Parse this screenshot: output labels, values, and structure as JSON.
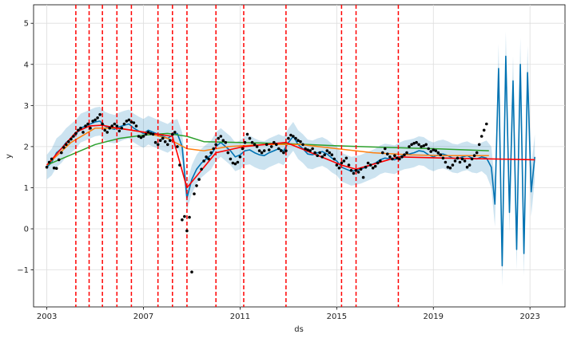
{
  "chart_data": {
    "type": "line",
    "title": "",
    "xlabel": "ds",
    "ylabel": "y",
    "xlim": [
      2002.45,
      2024.45
    ],
    "ylim": [
      -1.9,
      5.45
    ],
    "x_ticks": [
      2003,
      2007,
      2011,
      2015,
      2019,
      2023
    ],
    "x_tick_labels": [
      "2003",
      "2007",
      "2011",
      "2015",
      "2019",
      "2023"
    ],
    "y_ticks": [
      -1,
      0,
      1,
      2,
      3,
      4,
      5
    ],
    "y_tick_labels": [
      "−1",
      "0",
      "1",
      "2",
      "3",
      "4",
      "5"
    ],
    "grid": true,
    "legend": "none",
    "changepoints": [
      2004.2,
      2004.75,
      2005.3,
      2005.9,
      2006.5,
      2007.6,
      2008.2,
      2008.8,
      2010.0,
      2011.15,
      2012.9,
      2015.2,
      2015.8,
      2017.55
    ],
    "colors": {
      "observed": "#000000",
      "forecast": "#0072B2",
      "interval": "#0072B2",
      "changepoint": "#FF0000",
      "trend_red": "#FF0000",
      "trend_green": "#2CA02C",
      "trend_orange": "#FF7F0E"
    },
    "observed": {
      "x": [
        2003.0,
        2003.1,
        2003.2,
        2003.3,
        2003.4,
        2003.5,
        2003.6,
        2003.7,
        2003.8,
        2003.9,
        2004.0,
        2004.1,
        2004.2,
        2004.3,
        2004.4,
        2004.5,
        2004.6,
        2004.7,
        2004.8,
        2004.9,
        2005.0,
        2005.1,
        2005.2,
        2005.3,
        2005.4,
        2005.5,
        2005.6,
        2005.7,
        2005.8,
        2005.9,
        2006.0,
        2006.1,
        2006.2,
        2006.3,
        2006.4,
        2006.5,
        2006.6,
        2006.7,
        2006.8,
        2006.9,
        2007.0,
        2007.1,
        2007.2,
        2007.3,
        2007.4,
        2007.5,
        2007.6,
        2007.7,
        2007.8,
        2007.9,
        2008.0,
        2008.1,
        2008.2,
        2008.3,
        2008.4,
        2008.5,
        2008.6,
        2008.7,
        2008.8,
        2008.9,
        2009.0,
        2009.1,
        2009.2,
        2009.3,
        2009.4,
        2009.5,
        2009.6,
        2009.7,
        2009.8,
        2009.9,
        2010.0,
        2010.1,
        2010.2,
        2010.3,
        2010.4,
        2010.5,
        2010.6,
        2010.7,
        2010.8,
        2010.9,
        2011.0,
        2011.1,
        2011.2,
        2011.3,
        2011.4,
        2011.5,
        2011.6,
        2011.7,
        2011.8,
        2011.9,
        2012.0,
        2012.1,
        2012.2,
        2012.3,
        2012.4,
        2012.5,
        2012.6,
        2012.7,
        2012.8,
        2012.9,
        2013.0,
        2013.1,
        2013.2,
        2013.3,
        2013.4,
        2013.5,
        2013.6,
        2013.7,
        2013.8,
        2013.9,
        2014.0,
        2014.1,
        2014.2,
        2014.3,
        2014.4,
        2014.5,
        2014.6,
        2014.7,
        2014.8,
        2014.9,
        2015.0,
        2015.1,
        2015.2,
        2015.3,
        2015.4,
        2015.5,
        2015.6,
        2015.7,
        2015.8,
        2015.9,
        2016.0,
        2016.1,
        2016.2,
        2016.3,
        2016.4,
        2016.5,
        2016.6,
        2016.7,
        2016.8,
        2016.9,
        2017.0,
        2017.1,
        2017.2,
        2017.3,
        2017.4,
        2017.5,
        2017.6,
        2017.7,
        2017.8,
        2017.9,
        2018.0,
        2018.1,
        2018.2,
        2018.3,
        2018.4,
        2018.5,
        2018.6,
        2018.7,
        2018.8,
        2018.9,
        2019.0,
        2019.1,
        2019.2,
        2019.3,
        2019.4,
        2019.5,
        2019.6,
        2019.7,
        2019.8,
        2019.9,
        2020.0,
        2020.1,
        2020.2,
        2020.3,
        2020.4,
        2020.5,
        2020.6,
        2020.7,
        2020.8,
        2020.9,
        2021.0,
        2021.1,
        2021.2
      ],
      "y": [
        1.5,
        1.62,
        1.7,
        1.48,
        1.47,
        1.68,
        1.85,
        1.98,
        2.05,
        2.12,
        2.18,
        2.25,
        2.32,
        2.4,
        2.45,
        2.35,
        2.5,
        2.55,
        2.45,
        2.62,
        2.65,
        2.7,
        2.78,
        2.55,
        2.4,
        2.35,
        2.45,
        2.5,
        2.55,
        2.5,
        2.38,
        2.45,
        2.55,
        2.62,
        2.65,
        2.6,
        2.58,
        2.5,
        2.25,
        2.22,
        2.25,
        2.3,
        2.35,
        2.32,
        2.3,
        2.1,
        2.05,
        2.15,
        2.2,
        2.12,
        2.05,
        2.15,
        2.3,
        2.35,
        2.0,
        1.55,
        0.22,
        0.3,
        -0.05,
        0.28,
        -1.05,
        0.85,
        1.05,
        1.2,
        1.45,
        1.65,
        1.75,
        1.7,
        1.85,
        1.95,
        2.05,
        2.2,
        2.25,
        2.15,
        2.1,
        1.85,
        1.7,
        1.6,
        1.58,
        1.62,
        1.75,
        1.95,
        2.1,
        2.3,
        2.2,
        2.1,
        2.05,
        2.0,
        1.9,
        1.85,
        1.9,
        2.05,
        1.92,
        2.0,
        2.1,
        2.05,
        1.95,
        1.9,
        1.85,
        1.9,
        2.2,
        2.28,
        2.25,
        2.2,
        2.15,
        2.12,
        2.05,
        1.95,
        1.92,
        1.9,
        1.95,
        1.85,
        1.78,
        1.85,
        1.75,
        1.8,
        1.9,
        1.85,
        1.8,
        1.7,
        1.55,
        1.48,
        1.6,
        1.65,
        1.72,
        1.55,
        1.42,
        1.35,
        1.42,
        1.38,
        1.45,
        1.25,
        1.5,
        1.6,
        1.55,
        1.48,
        1.52,
        1.6,
        1.65,
        1.85,
        1.95,
        1.82,
        1.75,
        1.7,
        1.78,
        1.72,
        1.7,
        1.75,
        1.8,
        1.85,
        2.0,
        2.05,
        2.08,
        2.1,
        2.05,
        2.0,
        2.02,
        2.05,
        1.95,
        1.88,
        1.92,
        1.9,
        1.85,
        1.8,
        1.72,
        1.62,
        1.5,
        1.48,
        1.55,
        1.65,
        1.72,
        1.62,
        1.7,
        1.65,
        1.5,
        1.55,
        1.7,
        1.78,
        1.85,
        2.05,
        2.25,
        2.4,
        2.55
      ]
    },
    "forecast": {
      "x": [
        2003.0,
        2003.2,
        2003.4,
        2003.6,
        2003.8,
        2004.0,
        2004.2,
        2004.4,
        2004.6,
        2004.8,
        2005.0,
        2005.2,
        2005.4,
        2005.6,
        2005.8,
        2006.0,
        2006.2,
        2006.4,
        2006.6,
        2006.8,
        2007.0,
        2007.2,
        2007.4,
        2007.6,
        2007.8,
        2008.0,
        2008.2,
        2008.4,
        2008.6,
        2008.8,
        2009.0,
        2009.2,
        2009.4,
        2009.6,
        2009.8,
        2010.0,
        2010.2,
        2010.4,
        2010.6,
        2010.8,
        2011.0,
        2011.2,
        2011.4,
        2011.6,
        2011.8,
        2012.0,
        2012.2,
        2012.4,
        2012.6,
        2012.8,
        2013.0,
        2013.2,
        2013.4,
        2013.6,
        2013.8,
        2014.0,
        2014.2,
        2014.4,
        2014.6,
        2014.8,
        2015.0,
        2015.2,
        2015.4,
        2015.6,
        2015.8,
        2016.0,
        2016.2,
        2016.4,
        2016.6,
        2016.8,
        2017.0,
        2017.2,
        2017.4,
        2017.6,
        2017.8,
        2018.0,
        2018.2,
        2018.4,
        2018.6,
        2018.8,
        2019.0,
        2019.2,
        2019.4,
        2019.6,
        2019.8,
        2020.0,
        2020.2,
        2020.4,
        2020.6,
        2020.8,
        2021.0,
        2021.2,
        2021.4,
        2021.55,
        2021.7,
        2021.85,
        2022.0,
        2022.15,
        2022.3,
        2022.45,
        2022.6,
        2022.75,
        2022.9,
        2023.05,
        2023.2
      ],
      "y": [
        1.5,
        1.62,
        1.85,
        1.95,
        2.1,
        2.2,
        2.3,
        2.45,
        2.5,
        2.55,
        2.6,
        2.62,
        2.5,
        2.45,
        2.42,
        2.48,
        2.52,
        2.55,
        2.45,
        2.38,
        2.32,
        2.4,
        2.35,
        2.3,
        2.25,
        2.2,
        2.28,
        2.32,
        2.0,
        0.75,
        1.2,
        1.45,
        1.6,
        1.7,
        1.8,
        2.0,
        2.1,
        2.0,
        1.9,
        1.75,
        1.8,
        1.9,
        1.92,
        1.85,
        1.8,
        1.78,
        1.85,
        1.9,
        1.95,
        1.9,
        2.1,
        2.25,
        2.05,
        1.95,
        1.82,
        1.8,
        1.85,
        1.88,
        1.82,
        1.72,
        1.65,
        1.5,
        1.45,
        1.4,
        1.42,
        1.45,
        1.5,
        1.55,
        1.6,
        1.68,
        1.72,
        1.7,
        1.68,
        1.75,
        1.8,
        1.82,
        1.85,
        1.9,
        1.88,
        1.8,
        1.75,
        1.8,
        1.82,
        1.78,
        1.72,
        1.7,
        1.75,
        1.78,
        1.72,
        1.7,
        1.75,
        1.72,
        1.5,
        0.6,
        3.9,
        -0.9,
        4.2,
        0.4,
        3.6,
        -0.5,
        4.0,
        -0.6,
        3.8,
        0.9,
        1.75
      ],
      "lower": [
        1.2,
        1.3,
        1.5,
        1.6,
        1.75,
        1.85,
        1.95,
        2.1,
        2.15,
        2.2,
        2.25,
        2.27,
        2.15,
        2.1,
        2.08,
        2.12,
        2.17,
        2.2,
        2.1,
        2.03,
        1.97,
        2.05,
        2.0,
        1.95,
        1.9,
        1.85,
        1.93,
        1.97,
        1.65,
        0.45,
        0.85,
        1.1,
        1.25,
        1.35,
        1.45,
        1.65,
        1.75,
        1.65,
        1.55,
        1.4,
        1.45,
        1.55,
        1.57,
        1.5,
        1.45,
        1.43,
        1.5,
        1.55,
        1.6,
        1.55,
        1.75,
        1.9,
        1.7,
        1.6,
        1.47,
        1.45,
        1.5,
        1.53,
        1.47,
        1.37,
        1.3,
        1.15,
        1.1,
        1.05,
        1.07,
        1.1,
        1.15,
        1.2,
        1.25,
        1.33,
        1.37,
        1.35,
        1.33,
        1.4,
        1.45,
        1.47,
        1.5,
        1.55,
        1.53,
        1.45,
        1.4,
        1.45,
        1.47,
        1.43,
        1.37,
        1.35,
        1.4,
        1.43,
        1.37,
        1.35,
        1.4,
        1.3,
        1.0,
        0.05,
        3.3,
        -1.4,
        3.6,
        -0.1,
        3.0,
        -1.0,
        3.35,
        -1.15,
        3.1,
        0.3,
        1.2
      ],
      "upper": [
        1.8,
        1.95,
        2.2,
        2.3,
        2.45,
        2.55,
        2.65,
        2.8,
        2.85,
        2.9,
        2.95,
        2.97,
        2.85,
        2.8,
        2.77,
        2.83,
        2.87,
        2.9,
        2.8,
        2.73,
        2.67,
        2.75,
        2.7,
        2.65,
        2.6,
        2.55,
        2.63,
        2.67,
        2.35,
        1.1,
        1.55,
        1.8,
        1.95,
        2.05,
        2.15,
        2.35,
        2.45,
        2.35,
        2.25,
        2.1,
        2.15,
        2.25,
        2.27,
        2.2,
        2.15,
        2.13,
        2.2,
        2.25,
        2.3,
        2.25,
        2.45,
        2.6,
        2.4,
        2.3,
        2.17,
        2.15,
        2.2,
        2.23,
        2.17,
        2.07,
        2.0,
        1.85,
        1.8,
        1.75,
        1.77,
        1.8,
        1.85,
        1.9,
        1.95,
        2.03,
        2.07,
        2.05,
        2.03,
        2.1,
        2.15,
        2.17,
        2.2,
        2.25,
        2.23,
        2.15,
        2.1,
        2.15,
        2.17,
        2.13,
        2.07,
        2.05,
        2.1,
        2.13,
        2.07,
        2.05,
        2.1,
        2.15,
        2.0,
        1.15,
        4.5,
        -0.4,
        4.8,
        0.95,
        4.2,
        0.05,
        4.65,
        -0.05,
        4.45,
        1.5,
        2.3
      ]
    },
    "trend_red": {
      "x": [
        2003.0,
        2004.2,
        2004.75,
        2005.3,
        2005.9,
        2006.5,
        2007.6,
        2008.2,
        2008.8,
        2010.0,
        2011.15,
        2012.9,
        2015.2,
        2015.8,
        2017.55,
        2019.5,
        2021.5,
        2023.2
      ],
      "y": [
        1.55,
        2.35,
        2.5,
        2.52,
        2.45,
        2.4,
        2.3,
        2.25,
        1.0,
        1.85,
        2.0,
        2.1,
        1.55,
        1.45,
        1.75,
        1.72,
        1.7,
        1.68
      ]
    },
    "trend_green": {
      "x": [
        2003.0,
        2004.0,
        2005.0,
        2006.0,
        2007.0,
        2008.0,
        2008.8,
        2009.5,
        2011.0,
        2013.0,
        2015.0,
        2017.0,
        2019.0,
        2021.3
      ],
      "y": [
        1.55,
        1.8,
        2.05,
        2.2,
        2.28,
        2.32,
        2.25,
        2.12,
        2.1,
        2.07,
        2.02,
        1.98,
        1.95,
        1.9
      ]
    },
    "trend_orange": {
      "x": [
        2003.0,
        2004.0,
        2005.0,
        2006.0,
        2007.0,
        2008.0,
        2008.8,
        2009.5,
        2010.5,
        2012.0,
        2013.5,
        2015.0,
        2016.5,
        2018.0,
        2019.5,
        2021.3
      ],
      "y": [
        1.55,
        2.1,
        2.45,
        2.45,
        2.35,
        2.2,
        1.95,
        1.9,
        2.0,
        2.05,
        2.05,
        1.95,
        1.85,
        1.8,
        1.78,
        1.78
      ]
    }
  }
}
